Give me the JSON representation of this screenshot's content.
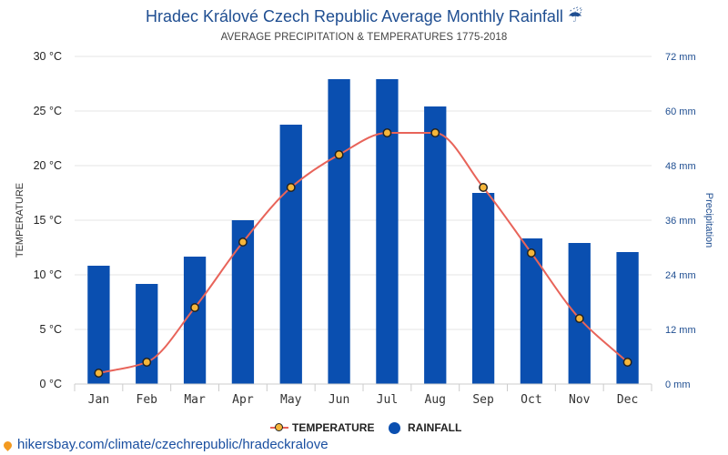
{
  "title": "Hradec Králové Czech Republic Average Monthly Rainfall",
  "title_icon": "umbrella-rain-icon",
  "subtitle": "AVERAGE PRECIPITATION & TEMPERATURES 1775-2018",
  "source": "hikersbay.com/climate/czechrepublic/hradeckralove",
  "colors": {
    "bar": "#0a4fb0",
    "line": "#e8645a",
    "marker_fill": "#f5b63a",
    "marker_stroke": "#222222",
    "grid": "#e6e6e6",
    "right_axis": "#1f4e91"
  },
  "chart_data": {
    "type": "bar",
    "categories": [
      "Jan",
      "Feb",
      "Mar",
      "Apr",
      "May",
      "Jun",
      "Jul",
      "Aug",
      "Sep",
      "Oct",
      "Nov",
      "Dec"
    ],
    "y_left": {
      "label": "TEMPERATURE",
      "ticks": [
        "0 °C",
        "5 °C",
        "10 °C",
        "15 °C",
        "20 °C",
        "25 °C",
        "30 °C"
      ],
      "range": [
        0,
        30
      ]
    },
    "y_right": {
      "label": "Precipitation",
      "ticks": [
        "0 mm",
        "12 mm",
        "24 mm",
        "36 mm",
        "48 mm",
        "60 mm",
        "72 mm"
      ],
      "range": [
        0,
        72
      ]
    },
    "series": [
      {
        "name": "TEMPERATURE",
        "type": "line",
        "axis": "left",
        "values": [
          1,
          2,
          7,
          13,
          18,
          21,
          23,
          23,
          18,
          12,
          6,
          2
        ]
      },
      {
        "name": "RAINFALL",
        "type": "bar",
        "axis": "right",
        "values": [
          26,
          22,
          28,
          36,
          57,
          67,
          67,
          61,
          42,
          32,
          31,
          29
        ]
      }
    ],
    "grid": true,
    "legend": "bottom-center"
  }
}
